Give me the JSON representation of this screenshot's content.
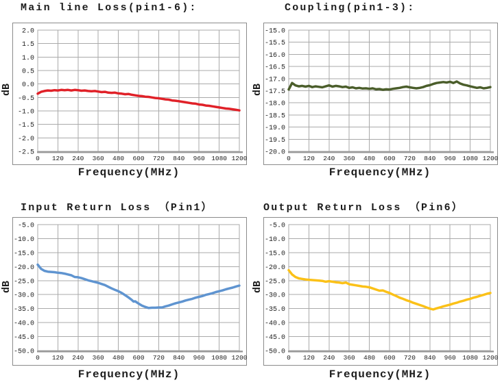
{
  "page": {
    "background": "#ffffff",
    "grid_color": "#a9a9a9",
    "frame_color": "#8a8a8a",
    "axis_color": "#9a9a9a"
  },
  "chart_data": [
    {
      "type": "line",
      "title": "Main line Loss(pin1-6):",
      "xlabel": "Frequency(MHz)",
      "ylabel": "dB",
      "color": "#e02128",
      "xlim": [
        0,
        1200
      ],
      "ylim": [
        -2.5,
        2.0
      ],
      "grid": true,
      "legend": "none",
      "ytick_labels": [
        "2.0",
        "1.5",
        "1.0",
        "0.5",
        "0.0",
        "-0.5",
        "-1.0",
        "-1.5",
        "-2.0",
        "-2.5"
      ],
      "xticks": [
        0,
        120,
        240,
        360,
        480,
        600,
        720,
        840,
        960,
        1080,
        1200
      ],
      "points": [
        [
          0,
          -0.36
        ],
        [
          20,
          -0.29
        ],
        [
          40,
          -0.26
        ],
        [
          60,
          -0.24
        ],
        [
          80,
          -0.25
        ],
        [
          100,
          -0.23
        ],
        [
          120,
          -0.24
        ],
        [
          140,
          -0.22
        ],
        [
          160,
          -0.23
        ],
        [
          180,
          -0.22
        ],
        [
          200,
          -0.24
        ],
        [
          220,
          -0.22
        ],
        [
          240,
          -0.23
        ],
        [
          260,
          -0.25
        ],
        [
          280,
          -0.24
        ],
        [
          300,
          -0.26
        ],
        [
          320,
          -0.27
        ],
        [
          340,
          -0.26
        ],
        [
          360,
          -0.28
        ],
        [
          380,
          -0.3
        ],
        [
          400,
          -0.29
        ],
        [
          420,
          -0.32
        ],
        [
          440,
          -0.33
        ],
        [
          460,
          -0.32
        ],
        [
          480,
          -0.35
        ],
        [
          500,
          -0.36
        ],
        [
          520,
          -0.38
        ],
        [
          540,
          -0.37
        ],
        [
          560,
          -0.4
        ],
        [
          580,
          -0.42
        ],
        [
          600,
          -0.44
        ],
        [
          620,
          -0.45
        ],
        [
          640,
          -0.47
        ],
        [
          660,
          -0.48
        ],
        [
          680,
          -0.5
        ],
        [
          700,
          -0.52
        ],
        [
          720,
          -0.53
        ],
        [
          740,
          -0.55
        ],
        [
          760,
          -0.57
        ],
        [
          780,
          -0.58
        ],
        [
          800,
          -0.61
        ],
        [
          820,
          -0.62
        ],
        [
          840,
          -0.64
        ],
        [
          860,
          -0.66
        ],
        [
          880,
          -0.68
        ],
        [
          900,
          -0.7
        ],
        [
          920,
          -0.72
        ],
        [
          940,
          -0.73
        ],
        [
          960,
          -0.76
        ],
        [
          980,
          -0.77
        ],
        [
          1000,
          -0.8
        ],
        [
          1020,
          -0.81
        ],
        [
          1040,
          -0.83
        ],
        [
          1060,
          -0.85
        ],
        [
          1080,
          -0.87
        ],
        [
          1100,
          -0.89
        ],
        [
          1120,
          -0.91
        ],
        [
          1140,
          -0.92
        ],
        [
          1160,
          -0.94
        ],
        [
          1180,
          -0.96
        ],
        [
          1200,
          -0.98
        ]
      ]
    },
    {
      "type": "line",
      "title": "Coupling(pin1-3):",
      "xlabel": "Frequency(MHz)",
      "ylabel": "dB",
      "color": "#4b5e2b",
      "xlim": [
        0,
        1200
      ],
      "ylim": [
        -20.0,
        -15.0
      ],
      "grid": true,
      "legend": "none",
      "ytick_labels": [
        "-15.0",
        "-15.5",
        "-16.0",
        "-16.5",
        "-17.0",
        "-17.5",
        "-18.0",
        "-18.5",
        "-19.0",
        "-19.5",
        "-20.0"
      ],
      "xticks": [
        0,
        120,
        240,
        360,
        480,
        600,
        720,
        840,
        960,
        1080,
        1200
      ],
      "points": [
        [
          0,
          -17.45
        ],
        [
          20,
          -17.18
        ],
        [
          40,
          -17.28
        ],
        [
          60,
          -17.32
        ],
        [
          80,
          -17.3
        ],
        [
          100,
          -17.33
        ],
        [
          120,
          -17.3
        ],
        [
          140,
          -17.35
        ],
        [
          160,
          -17.32
        ],
        [
          180,
          -17.34
        ],
        [
          200,
          -17.36
        ],
        [
          220,
          -17.32
        ],
        [
          240,
          -17.28
        ],
        [
          260,
          -17.33
        ],
        [
          280,
          -17.3
        ],
        [
          300,
          -17.32
        ],
        [
          320,
          -17.35
        ],
        [
          340,
          -17.33
        ],
        [
          360,
          -17.38
        ],
        [
          380,
          -17.36
        ],
        [
          400,
          -17.4
        ],
        [
          420,
          -17.38
        ],
        [
          440,
          -17.41
        ],
        [
          460,
          -17.4
        ],
        [
          480,
          -17.42
        ],
        [
          500,
          -17.4
        ],
        [
          520,
          -17.44
        ],
        [
          540,
          -17.43
        ],
        [
          560,
          -17.46
        ],
        [
          580,
          -17.44
        ],
        [
          600,
          -17.45
        ],
        [
          620,
          -17.42
        ],
        [
          640,
          -17.4
        ],
        [
          660,
          -17.38
        ],
        [
          680,
          -17.35
        ],
        [
          700,
          -17.33
        ],
        [
          720,
          -17.36
        ],
        [
          740,
          -17.38
        ],
        [
          760,
          -17.4
        ],
        [
          780,
          -17.38
        ],
        [
          800,
          -17.35
        ],
        [
          820,
          -17.3
        ],
        [
          840,
          -17.27
        ],
        [
          860,
          -17.22
        ],
        [
          880,
          -17.18
        ],
        [
          900,
          -17.16
        ],
        [
          920,
          -17.14
        ],
        [
          940,
          -17.16
        ],
        [
          960,
          -17.13
        ],
        [
          980,
          -17.18
        ],
        [
          1000,
          -17.12
        ],
        [
          1020,
          -17.2
        ],
        [
          1040,
          -17.25
        ],
        [
          1060,
          -17.28
        ],
        [
          1080,
          -17.32
        ],
        [
          1100,
          -17.35
        ],
        [
          1120,
          -17.38
        ],
        [
          1140,
          -17.36
        ],
        [
          1160,
          -17.4
        ],
        [
          1180,
          -17.38
        ],
        [
          1200,
          -17.35
        ]
      ]
    },
    {
      "type": "line",
      "title": "Input Return Loss （Pin1）",
      "xlabel": "Frequency(MHz)",
      "ylabel": "dB",
      "color": "#5f94d0",
      "xlim": [
        0,
        1200
      ],
      "ylim": [
        -50.0,
        -5.0
      ],
      "grid": true,
      "legend": "none",
      "ytick_labels": [
        "-5.0",
        "-10.0",
        "-15.0",
        "-20.0",
        "-25.0",
        "-30.0",
        "-35.0",
        "-40.0",
        "-45.0",
        "-50.0"
      ],
      "xticks": [
        0,
        120,
        240,
        360,
        480,
        600,
        720,
        840,
        960,
        1080,
        1200
      ],
      "points": [
        [
          0,
          -19.3
        ],
        [
          20,
          -20.8
        ],
        [
          40,
          -21.5
        ],
        [
          60,
          -21.8
        ],
        [
          80,
          -21.9
        ],
        [
          100,
          -22.0
        ],
        [
          120,
          -22.2
        ],
        [
          140,
          -22.3
        ],
        [
          160,
          -22.5
        ],
        [
          180,
          -22.8
        ],
        [
          200,
          -23.1
        ],
        [
          220,
          -23.7
        ],
        [
          240,
          -23.8
        ],
        [
          260,
          -24.1
        ],
        [
          280,
          -24.5
        ],
        [
          300,
          -24.9
        ],
        [
          320,
          -25.2
        ],
        [
          340,
          -25.5
        ],
        [
          360,
          -25.8
        ],
        [
          380,
          -26.2
        ],
        [
          400,
          -26.6
        ],
        [
          420,
          -27.2
        ],
        [
          440,
          -27.8
        ],
        [
          460,
          -28.3
        ],
        [
          480,
          -28.8
        ],
        [
          500,
          -29.4
        ],
        [
          520,
          -30.2
        ],
        [
          540,
          -31.0
        ],
        [
          560,
          -31.9
        ],
        [
          570,
          -32.5
        ],
        [
          580,
          -32.4
        ],
        [
          600,
          -33.2
        ],
        [
          620,
          -33.9
        ],
        [
          640,
          -34.4
        ],
        [
          660,
          -34.8
        ],
        [
          680,
          -34.7
        ],
        [
          700,
          -34.7
        ],
        [
          720,
          -34.6
        ],
        [
          740,
          -34.6
        ],
        [
          760,
          -34.2
        ],
        [
          780,
          -33.9
        ],
        [
          800,
          -33.5
        ],
        [
          820,
          -33.1
        ],
        [
          840,
          -32.8
        ],
        [
          860,
          -32.5
        ],
        [
          880,
          -32.1
        ],
        [
          900,
          -31.8
        ],
        [
          920,
          -31.5
        ],
        [
          940,
          -31.1
        ],
        [
          960,
          -30.8
        ],
        [
          980,
          -30.5
        ],
        [
          1000,
          -30.1
        ],
        [
          1020,
          -29.8
        ],
        [
          1040,
          -29.5
        ],
        [
          1060,
          -29.1
        ],
        [
          1080,
          -28.8
        ],
        [
          1100,
          -28.5
        ],
        [
          1120,
          -28.1
        ],
        [
          1140,
          -27.8
        ],
        [
          1160,
          -27.5
        ],
        [
          1180,
          -27.1
        ],
        [
          1200,
          -26.8
        ]
      ]
    },
    {
      "type": "line",
      "title": "Output Return Loss （Pin6）",
      "xlabel": "Frequency(MHz)",
      "ylabel": "dB",
      "color": "#fbc118",
      "xlim": [
        0,
        1200
      ],
      "ylim": [
        -50.0,
        -5.0
      ],
      "grid": true,
      "legend": "none",
      "ytick_labels": [
        "-5.0",
        "-10.0",
        "-15.0",
        "-20.0",
        "-25.0",
        "-30.0",
        "-35.0",
        "-40.0",
        "-45.0",
        "-50.0"
      ],
      "xticks": [
        0,
        120,
        240,
        360,
        480,
        600,
        720,
        840,
        960,
        1080,
        1200
      ],
      "points": [
        [
          0,
          -21.3
        ],
        [
          20,
          -22.8
        ],
        [
          40,
          -23.7
        ],
        [
          60,
          -24.2
        ],
        [
          80,
          -24.4
        ],
        [
          100,
          -24.6
        ],
        [
          120,
          -24.7
        ],
        [
          140,
          -24.8
        ],
        [
          160,
          -24.9
        ],
        [
          180,
          -25.0
        ],
        [
          200,
          -25.1
        ],
        [
          220,
          -25.4
        ],
        [
          240,
          -25.2
        ],
        [
          260,
          -25.4
        ],
        [
          280,
          -25.6
        ],
        [
          300,
          -25.7
        ],
        [
          320,
          -25.9
        ],
        [
          340,
          -25.7
        ],
        [
          360,
          -26.3
        ],
        [
          380,
          -26.5
        ],
        [
          400,
          -26.7
        ],
        [
          420,
          -26.9
        ],
        [
          440,
          -27.1
        ],
        [
          460,
          -27.2
        ],
        [
          480,
          -27.4
        ],
        [
          500,
          -27.8
        ],
        [
          520,
          -28.2
        ],
        [
          540,
          -28.6
        ],
        [
          560,
          -28.5
        ],
        [
          580,
          -29.0
        ],
        [
          600,
          -29.4
        ],
        [
          620,
          -30.0
        ],
        [
          640,
          -30.5
        ],
        [
          660,
          -31.1
        ],
        [
          680,
          -31.5
        ],
        [
          700,
          -32.0
        ],
        [
          720,
          -32.4
        ],
        [
          740,
          -32.9
        ],
        [
          760,
          -33.3
        ],
        [
          780,
          -33.7
        ],
        [
          800,
          -34.1
        ],
        [
          820,
          -34.6
        ],
        [
          840,
          -35.0
        ],
        [
          860,
          -35.3
        ],
        [
          880,
          -34.9
        ],
        [
          900,
          -34.6
        ],
        [
          920,
          -34.2
        ],
        [
          940,
          -33.9
        ],
        [
          960,
          -33.6
        ],
        [
          980,
          -33.2
        ],
        [
          1000,
          -32.9
        ],
        [
          1020,
          -32.5
        ],
        [
          1040,
          -32.2
        ],
        [
          1060,
          -31.8
        ],
        [
          1080,
          -31.5
        ],
        [
          1100,
          -31.1
        ],
        [
          1120,
          -30.8
        ],
        [
          1140,
          -30.4
        ],
        [
          1160,
          -30.1
        ],
        [
          1180,
          -29.7
        ],
        [
          1200,
          -29.4
        ]
      ]
    }
  ]
}
